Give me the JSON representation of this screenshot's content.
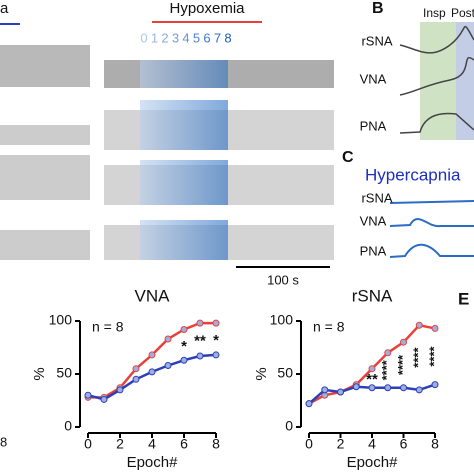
{
  "figure": {
    "panel_a_fragment": "a",
    "hypoxemia": "Hypoxemia",
    "epochs": [
      "0",
      "1",
      "2",
      "3",
      "4",
      "5",
      "6",
      "7",
      "8"
    ],
    "scale_bar": "100 s",
    "panel_b": "B",
    "phases": [
      "Insp",
      "Post"
    ],
    "b_labels": [
      "rSNA",
      "VNA",
      "PNA"
    ],
    "panel_c": "C",
    "c_title": "Hypercapnia",
    "c_labels": [
      "rSNA",
      "VNA",
      "PNA"
    ],
    "panel_e": "E",
    "left_fragment": "8"
  },
  "chart_data": [
    {
      "type": "line",
      "title": "VNA",
      "annotation": "n = 8",
      "xlabel": "Epoch#",
      "ylabel": "%",
      "x": [
        0,
        1,
        2,
        3,
        4,
        5,
        6,
        7,
        8
      ],
      "xlim": [
        0,
        8
      ],
      "xticks": [
        0,
        2,
        4,
        6,
        8
      ],
      "ylim": [
        0,
        100
      ],
      "yticks": [
        0,
        50,
        100
      ],
      "series": [
        {
          "color": "#e8413b",
          "values": [
            28,
            28,
            37,
            55,
            68,
            83,
            92,
            98,
            98
          ]
        },
        {
          "color": "#2c3fb8",
          "values": [
            30,
            26,
            35,
            45,
            52,
            58,
            63,
            67,
            68
          ]
        }
      ],
      "significance": [
        {
          "x": 6,
          "label": "*"
        },
        {
          "x": 7,
          "label": "**"
        },
        {
          "x": 8,
          "label": "*"
        }
      ]
    },
    {
      "type": "line",
      "title": "rSNA",
      "annotation": "n = 8",
      "xlabel": "Epoch#",
      "ylabel": "%",
      "x": [
        0,
        1,
        2,
        3,
        4,
        5,
        6,
        7,
        8
      ],
      "xlim": [
        0,
        8
      ],
      "xticks": [
        0,
        2,
        4,
        6,
        8
      ],
      "ylim": [
        0,
        100
      ],
      "yticks": [
        0,
        50,
        100
      ],
      "series": [
        {
          "color": "#e8413b",
          "values": [
            22,
            30,
            33,
            40,
            55,
            70,
            80,
            96,
            93
          ]
        },
        {
          "color": "#2c3fb8",
          "values": [
            22,
            35,
            33,
            38,
            37,
            37,
            37,
            35,
            40
          ]
        }
      ],
      "significance": [
        {
          "x": 4,
          "label": "**"
        },
        {
          "x": 5,
          "label": "****"
        },
        {
          "x": 6,
          "label": "****"
        },
        {
          "x": 7,
          "label": "****"
        },
        {
          "x": 8,
          "label": "****"
        }
      ]
    }
  ]
}
